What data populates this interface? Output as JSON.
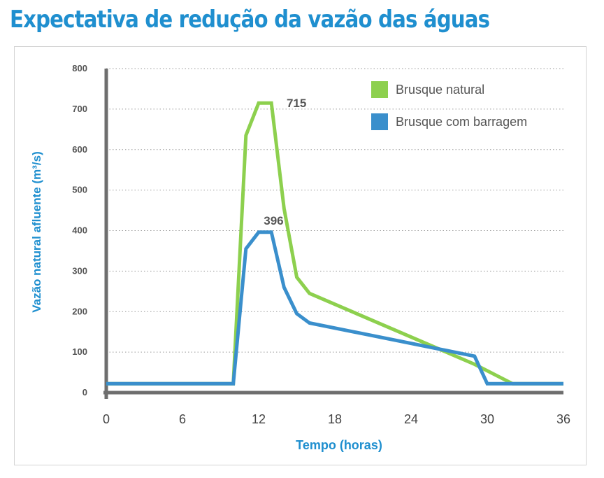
{
  "title": "Expectativa de redução da vazão das águas",
  "chart_data": {
    "type": "line",
    "title": "Expectativa de redução da vazão das águas",
    "xlabel": "Tempo (horas)",
    "ylabel": "Vazão natural afluente (m³/s)",
    "xlim": [
      0,
      36
    ],
    "ylim": [
      0,
      800
    ],
    "xticks": [
      0,
      6,
      12,
      18,
      24,
      30,
      36
    ],
    "yticks": [
      0,
      100,
      200,
      300,
      400,
      500,
      600,
      700,
      800
    ],
    "grid": "horizontal-dotted",
    "legend_position": "top-right",
    "series": [
      {
        "name": "Brusque natural",
        "color": "#8dd04e",
        "x": [
          0,
          10,
          11,
          12,
          13,
          14,
          15,
          16,
          29,
          32,
          36
        ],
        "y": [
          22,
          22,
          635,
          715,
          715,
          455,
          285,
          245,
          70,
          22,
          22
        ]
      },
      {
        "name": "Brusque com barragem",
        "color": "#3a8fcc",
        "x": [
          0,
          10,
          11,
          12,
          13,
          14,
          15,
          16,
          29,
          30,
          32,
          36
        ],
        "y": [
          22,
          22,
          355,
          396,
          396,
          260,
          195,
          172,
          90,
          22,
          22,
          22
        ]
      }
    ],
    "annotations": [
      {
        "text": "715",
        "x": 14.2,
        "y": 715
      },
      {
        "text": "396",
        "x": 12.4,
        "y": 396
      }
    ]
  }
}
